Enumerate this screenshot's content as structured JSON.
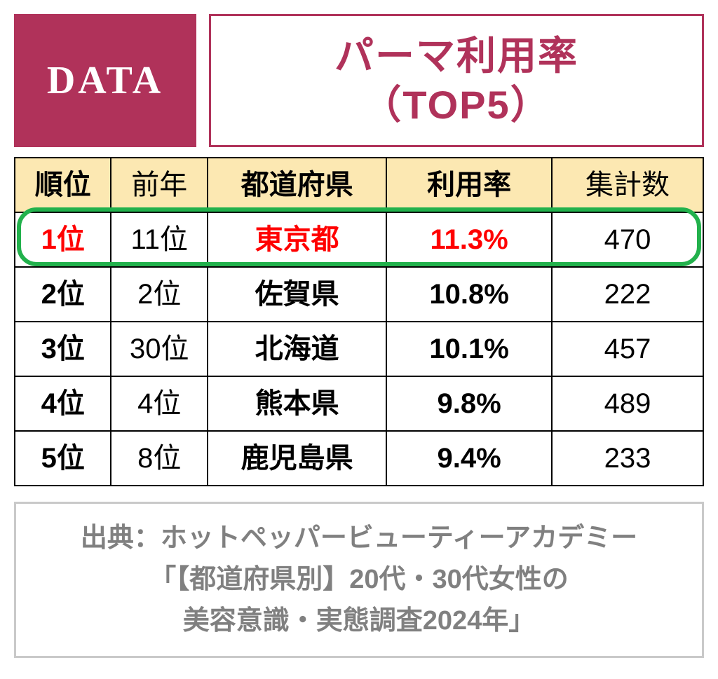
{
  "header": {
    "badge_label": "DATA",
    "title_line1": "パーマ利用率",
    "title_line2": "（TOP5）"
  },
  "table": {
    "type": "table",
    "columns": [
      {
        "key": "rank",
        "label": "順位",
        "bold_header": true,
        "width_pct": 14
      },
      {
        "key": "prev",
        "label": "前年",
        "bold_header": false,
        "width_pct": 14
      },
      {
        "key": "pref",
        "label": "都道府県",
        "bold_header": true,
        "width_pct": 26
      },
      {
        "key": "rate",
        "label": "利用率",
        "bold_header": true,
        "width_pct": 24
      },
      {
        "key": "count",
        "label": "集計数",
        "bold_header": false,
        "width_pct": 22
      }
    ],
    "rows": [
      {
        "rank": "1位",
        "prev": "11位",
        "pref": "東京都",
        "rate": "11.3%",
        "count": "470",
        "highlight": true
      },
      {
        "rank": "2位",
        "prev": "2位",
        "pref": "佐賀県",
        "rate": "10.8%",
        "count": "222",
        "highlight": false
      },
      {
        "rank": "3位",
        "prev": "30位",
        "pref": "北海道",
        "rate": "10.1%",
        "count": "457",
        "highlight": false
      },
      {
        "rank": "4位",
        "prev": "4位",
        "pref": "熊本県",
        "rate": "9.8%",
        "count": "489",
        "highlight": false
      },
      {
        "rank": "5位",
        "prev": "8位",
        "pref": "鹿児島県",
        "rate": "9.4%",
        "count": "233",
        "highlight": false
      }
    ],
    "highlight_cells_red": [
      "rank",
      "pref",
      "rate"
    ],
    "header_bg": "#fce8b2",
    "border_color": "#000000",
    "highlight_border_color": "#22b14c",
    "highlight_text_color": "#ff0000",
    "cell_fontsize": 40
  },
  "source": {
    "line1": "出典：ホットペッパービューティーアカデミー",
    "line2": "「【都道府県別】20代・30代女性の",
    "line3": "美容意識・実態調査2024年」",
    "text_color": "#808080",
    "border_color": "#c9c9c9"
  },
  "colors": {
    "accent": "#b0325a",
    "badge_bg": "#b0325a",
    "badge_text": "#ffffff",
    "title_text": "#b0325a",
    "background": "#ffffff"
  }
}
